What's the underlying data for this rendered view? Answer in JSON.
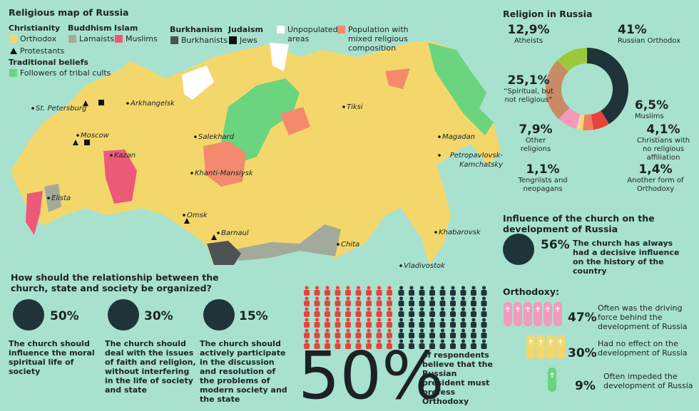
{
  "map": {
    "title": "Religious map of Russia",
    "legend": [
      {
        "title": "Christianity",
        "items": [
          {
            "label": "Orthodox",
            "color": "#f4d76b"
          },
          {
            "label": "Protestants"
          }
        ]
      },
      {
        "title": "Traditional beliefs",
        "items": [
          {
            "label": "Followers of tribal cults",
            "color": "#6bd47f"
          }
        ]
      },
      {
        "title": "Buddhism",
        "items": [
          {
            "label": "Lamaists",
            "color": "#a3aa9c"
          }
        ]
      },
      {
        "title": "Islam",
        "items": [
          {
            "label": "Muslims",
            "color": "#ec5a7a"
          }
        ]
      },
      {
        "title": "Burkhanism",
        "items": [
          {
            "label": "Burkhanists",
            "color": "#4d5254"
          }
        ]
      },
      {
        "title": "Judaism",
        "items": [
          {
            "label": "Jews",
            "color": "#111111"
          }
        ]
      },
      {
        "title": null,
        "items": [
          {
            "label": "Unpopulated areas",
            "color": "#ffffff"
          }
        ]
      },
      {
        "title": null,
        "items": [
          {
            "label": "Population with mixed religious composition",
            "color": "#f38a6e"
          }
        ]
      }
    ],
    "cities": [
      "St. Petersburg",
      "Arkhangelsk",
      "Moscow",
      "Kazan",
      "Elista",
      "Salekhard",
      "Khanti-Mansiysk",
      "Omsk",
      "Barnaul",
      "Tiksi",
      "Magadan",
      "Petropavlovsk-Kamchatsky",
      "Khabarovsk",
      "Chita",
      "Vladivostok"
    ]
  },
  "chart_data": {
    "type": "donut",
    "title": "Religion in Russia",
    "categories": [
      "Russian Orthodox",
      "Muslims",
      "Christians with no religious affiliation",
      "Another form of Orthodoxy",
      "Tengriists and neopagans",
      "Other religions",
      "“Spiritual, but not religious”",
      "Atheists"
    ],
    "values": [
      41,
      6.5,
      4.1,
      1.4,
      1.1,
      7.9,
      25.1,
      12.9
    ],
    "value_labels": [
      "41%",
      "6,5%",
      "4,1%",
      "1,4%",
      "1,1%",
      "7,9%",
      "25,1%",
      "12,9%"
    ],
    "colors": [
      "#1f3438",
      "#e8423f",
      "#f47a62",
      "#f4d76b",
      "#e6e0a0",
      "#f39bbd",
      "#c98b66",
      "#9cc93b"
    ]
  },
  "relationship": {
    "question": "How should the relationship between the church, state and society be organized?",
    "options": [
      {
        "percent": "50%",
        "text": "The church should influence the moral spiritual life of society"
      },
      {
        "percent": "30%",
        "text": "The church should deal with the issues of faith and religion, without interfering in the life of society and state"
      },
      {
        "percent": "15%",
        "text": "The church should actively participate in the discussion and resolution of the problems of modern society and the state"
      }
    ]
  },
  "president": {
    "percent": "50%",
    "text": "of respondents believe that the Russian president must profess Orthodoxy"
  },
  "influence": {
    "title": "Influence of the church on the development of Russia",
    "percent": "56%",
    "text": "The church has always had a decisive influence on the history of the country"
  },
  "orthodoxy": {
    "title": "Orthodoxy:",
    "items": [
      {
        "percent": "47%",
        "text": "Often was the driving force behind the development of Russia"
      },
      {
        "percent": "30%",
        "text": "Had no effect on the development of Russia"
      },
      {
        "percent": "9%",
        "text": "Often impeded the development of Russia"
      }
    ]
  }
}
